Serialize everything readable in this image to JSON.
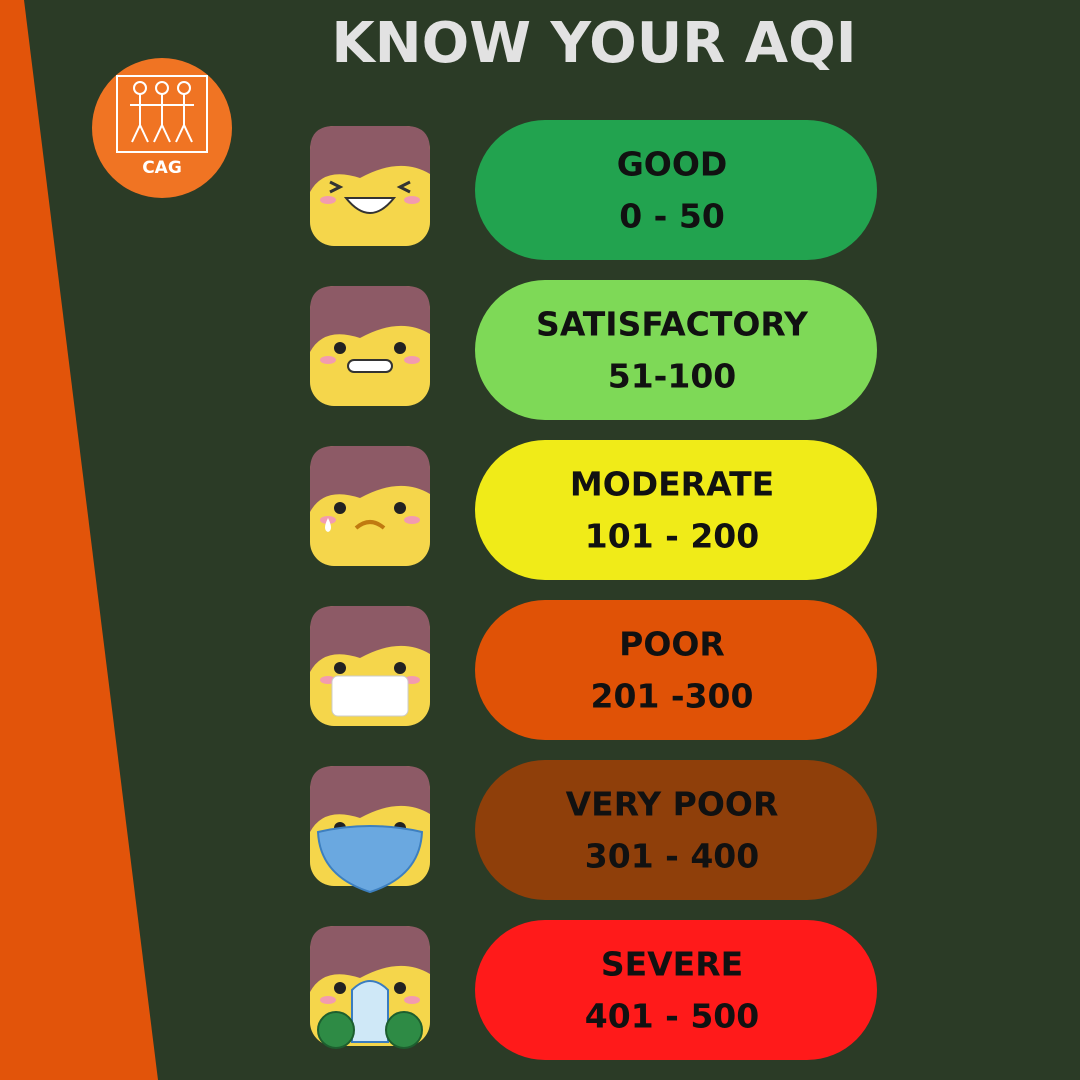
{
  "header": {
    "title": "KNOW YOUR AQI",
    "logo": "CAG"
  },
  "levels": [
    {
      "label": "GOOD",
      "range": "0 - 50",
      "color": "#22a34f"
    },
    {
      "label": "SATISFACTORY",
      "range": "51-100",
      "color": "#7ed957"
    },
    {
      "label": "MODERATE",
      "range": "101 - 200",
      "color": "#f0eb18"
    },
    {
      "label": "POOR",
      "range": "201 -300",
      "color": "#e05206"
    },
    {
      "label": "VERY POOR",
      "range": "301 - 400",
      "color": "#8f3f0a"
    },
    {
      "label": "SEVERE",
      "range": "401 - 500",
      "color": "#ff1a1a"
    }
  ]
}
